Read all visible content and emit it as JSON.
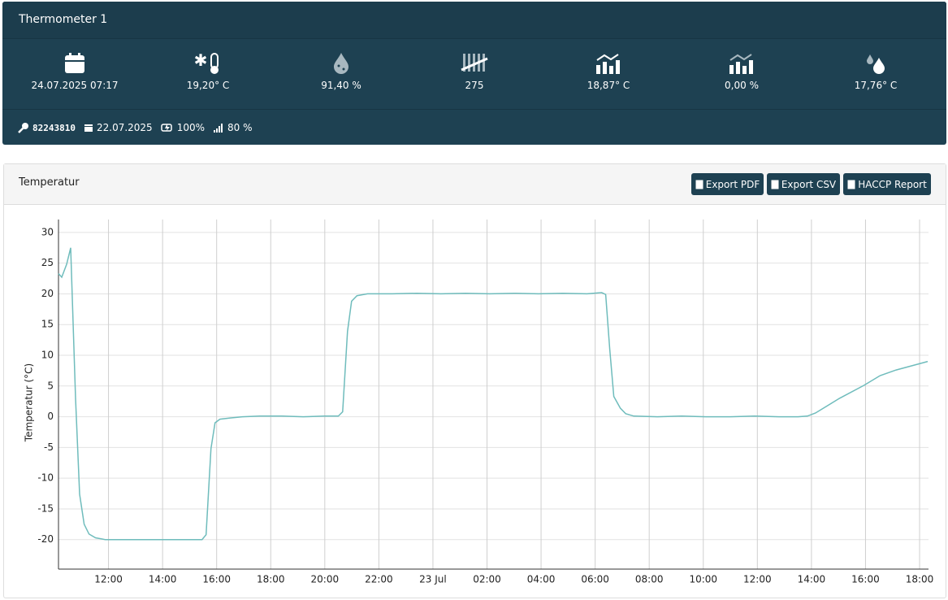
{
  "header": {
    "title": "Thermometer 1",
    "stats": [
      "24.07.2025 07:17",
      "19,20° C",
      "91,40 %",
      "275",
      "18,87° C",
      "0,00 %",
      "17,76° C"
    ],
    "info": [
      "82243810",
      "22.07.2025",
      "100%",
      "80 %"
    ]
  },
  "panel": {
    "title": "Temperatur",
    "buttons": [
      "Export PDF",
      "Export CSV",
      "HACCP Report"
    ]
  },
  "chart_data": {
    "type": "line",
    "y_label": "Temperatur (°C)",
    "color": "#6fbcbc",
    "grid": true,
    "x": [
      10.15,
      10.27,
      10.45,
      10.6,
      10.78,
      10.93,
      11.1,
      11.28,
      11.52,
      11.88,
      13.0,
      14.5,
      15.46,
      15.61,
      15.79,
      15.94,
      16.12,
      16.5,
      16.96,
      17.6,
      18.4,
      19.2,
      20.0,
      20.5,
      20.66,
      20.84,
      20.99,
      21.19,
      21.58,
      22.5,
      23.4,
      24.3,
      25.2,
      26.1,
      27.0,
      27.9,
      28.8,
      29.7,
      30.24,
      30.39,
      30.54,
      30.69,
      30.93,
      31.13,
      31.43,
      32.3,
      33.2,
      34.1,
      35.0,
      35.9,
      36.8,
      37.5,
      37.85,
      38.15,
      39.04,
      39.94,
      40.54,
      41.13,
      42.3
    ],
    "values": [
      23.3,
      22.7,
      24.8,
      27.5,
      3.0,
      -12.6,
      -17.5,
      -19.1,
      -19.7,
      -20.0,
      -20.0,
      -20.0,
      -20.0,
      -19.2,
      -5.2,
      -1.0,
      -0.4,
      -0.2,
      0.0,
      0.1,
      0.1,
      0.0,
      0.1,
      0.1,
      0.8,
      13.9,
      18.8,
      19.7,
      20.0,
      20.0,
      20.1,
      20.0,
      20.1,
      20.0,
      20.1,
      20.0,
      20.1,
      20.0,
      20.2,
      19.9,
      11.0,
      3.3,
      1.4,
      0.5,
      0.1,
      0.0,
      0.1,
      0.0,
      0.0,
      0.1,
      0.0,
      0.0,
      0.1,
      0.6,
      3.0,
      5.1,
      6.7,
      7.6,
      9.0
    ],
    "xlim": [
      10.15,
      42.33
    ],
    "ylim": [
      -24.8,
      32.1
    ],
    "xticks": [
      {
        "value": 12,
        "label": "12:00"
      },
      {
        "value": 14,
        "label": "14:00"
      },
      {
        "value": 16,
        "label": "16:00"
      },
      {
        "value": 18,
        "label": "18:00"
      },
      {
        "value": 20,
        "label": "20:00"
      },
      {
        "value": 22,
        "label": "22:00"
      },
      {
        "value": 24,
        "label": "23 Jul"
      },
      {
        "value": 26,
        "label": "02:00"
      },
      {
        "value": 28,
        "label": "04:00"
      },
      {
        "value": 30,
        "label": "06:00"
      },
      {
        "value": 32,
        "label": "08:00"
      },
      {
        "value": 34,
        "label": "10:00"
      },
      {
        "value": 36,
        "label": "12:00"
      },
      {
        "value": 38,
        "label": "14:00"
      },
      {
        "value": 40,
        "label": "16:00"
      },
      {
        "value": 42,
        "label": "18:00"
      }
    ],
    "yticks": [
      -20,
      -15,
      -10,
      -5,
      0,
      5,
      10,
      15,
      20,
      25,
      30
    ]
  }
}
